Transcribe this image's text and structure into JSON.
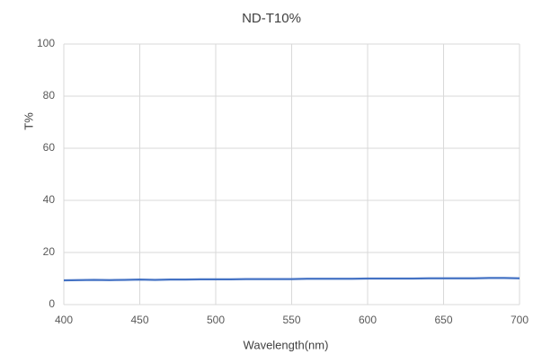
{
  "chart_data": {
    "type": "line",
    "title": "ND-T10%",
    "x_label": "Wavelength(nm)",
    "y_label": "T%",
    "x": [
      400,
      410,
      420,
      430,
      440,
      450,
      460,
      470,
      480,
      490,
      500,
      510,
      520,
      530,
      540,
      550,
      560,
      570,
      580,
      590,
      600,
      610,
      620,
      630,
      640,
      650,
      660,
      670,
      680,
      690,
      700
    ],
    "series": [
      {
        "name": "ND-T10%",
        "color": "#4472c4",
        "values": [
          9.3,
          9.4,
          9.5,
          9.4,
          9.5,
          9.6,
          9.5,
          9.6,
          9.6,
          9.7,
          9.7,
          9.7,
          9.8,
          9.8,
          9.8,
          9.8,
          9.9,
          9.9,
          9.9,
          9.9,
          10.0,
          10.0,
          10.0,
          10.0,
          10.1,
          10.1,
          10.1,
          10.1,
          10.2,
          10.2,
          10.1
        ]
      }
    ],
    "xlim": [
      400,
      700
    ],
    "xticks": [
      400,
      450,
      500,
      550,
      600,
      650,
      700
    ],
    "ylim": [
      0,
      100
    ],
    "yticks": [
      0,
      20,
      40,
      60,
      80,
      100
    ],
    "grid": true
  }
}
